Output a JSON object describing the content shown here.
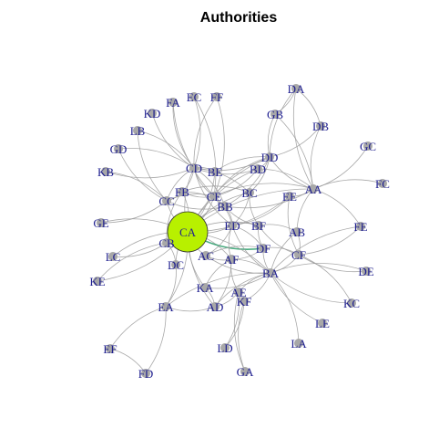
{
  "title": "Authorities",
  "colors": {
    "edge": "#9a9a9a",
    "node": "#a8a8a8",
    "label": "#1f1f8f",
    "highlight": "#b8f000",
    "accent": "#2a9d6a"
  },
  "nodes": [
    {
      "id": "DA",
      "label": "DA",
      "weight": 1
    },
    {
      "id": "FA",
      "label": "FA",
      "weight": 1
    },
    {
      "id": "EC",
      "label": "EC",
      "weight": 1
    },
    {
      "id": "FF",
      "label": "FF",
      "weight": 1
    },
    {
      "id": "KD",
      "label": "KD",
      "weight": 1
    },
    {
      "id": "GB",
      "label": "GB",
      "weight": 1
    },
    {
      "id": "DB",
      "label": "DB",
      "weight": 1
    },
    {
      "id": "LB",
      "label": "LB",
      "weight": 1
    },
    {
      "id": "GC",
      "label": "GC",
      "weight": 1
    },
    {
      "id": "GD",
      "label": "GD",
      "weight": 1
    },
    {
      "id": "DD",
      "label": "DD",
      "weight": 1
    },
    {
      "id": "CD",
      "label": "CD",
      "weight": 1
    },
    {
      "id": "BE",
      "label": "BE",
      "weight": 1
    },
    {
      "id": "BD",
      "label": "BD",
      "weight": 1
    },
    {
      "id": "KB",
      "label": "KB",
      "weight": 1
    },
    {
      "id": "AA",
      "label": "AA",
      "weight": 1
    },
    {
      "id": "FC",
      "label": "FC",
      "weight": 1
    },
    {
      "id": "FB",
      "label": "FB",
      "weight": 1
    },
    {
      "id": "CE",
      "label": "CE",
      "weight": 1
    },
    {
      "id": "BC",
      "label": "BC",
      "weight": 1
    },
    {
      "id": "EE",
      "label": "EE",
      "weight": 1
    },
    {
      "id": "CC",
      "label": "CC",
      "weight": 1
    },
    {
      "id": "BB",
      "label": "BB",
      "weight": 1
    },
    {
      "id": "GE",
      "label": "GE",
      "weight": 1
    },
    {
      "id": "CA",
      "label": "CA",
      "weight": 10
    },
    {
      "id": "ED",
      "label": "ED",
      "weight": 1
    },
    {
      "id": "BF",
      "label": "BF",
      "weight": 1
    },
    {
      "id": "FE",
      "label": "FE",
      "weight": 1
    },
    {
      "id": "AB",
      "label": "AB",
      "weight": 1
    },
    {
      "id": "LC",
      "label": "LC",
      "weight": 1
    },
    {
      "id": "CB",
      "label": "CB",
      "weight": 1
    },
    {
      "id": "DF",
      "label": "DF",
      "weight": 1
    },
    {
      "id": "AC",
      "label": "AC",
      "weight": 1
    },
    {
      "id": "AF",
      "label": "AF",
      "weight": 1
    },
    {
      "id": "CF",
      "label": "CF",
      "weight": 1
    },
    {
      "id": "DC",
      "label": "DC",
      "weight": 1
    },
    {
      "id": "KE",
      "label": "KE",
      "weight": 1
    },
    {
      "id": "BA",
      "label": "BA",
      "weight": 1
    },
    {
      "id": "DE",
      "label": "DE",
      "weight": 1
    },
    {
      "id": "KA",
      "label": "KA",
      "weight": 1
    },
    {
      "id": "AE",
      "label": "AE",
      "weight": 1
    },
    {
      "id": "KF",
      "label": "KF",
      "weight": 1
    },
    {
      "id": "KC",
      "label": "KC",
      "weight": 1
    },
    {
      "id": "EA",
      "label": "EA",
      "weight": 1
    },
    {
      "id": "AD",
      "label": "AD",
      "weight": 1
    },
    {
      "id": "LE",
      "label": "LE",
      "weight": 1
    },
    {
      "id": "LA",
      "label": "LA",
      "weight": 1
    },
    {
      "id": "LD",
      "label": "LD",
      "weight": 1
    },
    {
      "id": "EF",
      "label": "EF",
      "weight": 1
    },
    {
      "id": "FD",
      "label": "FD",
      "weight": 1
    },
    {
      "id": "GA",
      "label": "GA",
      "weight": 1
    }
  ],
  "edges": [
    [
      "DA",
      "DD"
    ],
    [
      "DA",
      "DB"
    ],
    [
      "DA",
      "AA"
    ],
    [
      "DA",
      "GB"
    ],
    [
      "DB",
      "AA"
    ],
    [
      "DB",
      "DD"
    ],
    [
      "GB",
      "DD"
    ],
    [
      "GB",
      "AA"
    ],
    [
      "FA",
      "CD"
    ],
    [
      "EC",
      "CD"
    ],
    [
      "FF",
      "CD"
    ],
    [
      "EC",
      "CE"
    ],
    [
      "FA",
      "CE"
    ],
    [
      "FF",
      "CE"
    ],
    [
      "KD",
      "CD"
    ],
    [
      "LB",
      "CD"
    ],
    [
      "GD",
      "CC"
    ],
    [
      "KB",
      "CC"
    ],
    [
      "LB",
      "CC"
    ],
    [
      "GC",
      "AA"
    ],
    [
      "FC",
      "AA"
    ],
    [
      "AA",
      "DD"
    ],
    [
      "AA",
      "BD"
    ],
    [
      "AA",
      "EE"
    ],
    [
      "AA",
      "CE"
    ],
    [
      "AA",
      "BB"
    ],
    [
      "AA",
      "CA"
    ],
    [
      "AA",
      "FE"
    ],
    [
      "AA",
      "AB"
    ],
    [
      "DD",
      "CD"
    ],
    [
      "DD",
      "BE"
    ],
    [
      "DD",
      "BD"
    ],
    [
      "DD",
      "CA"
    ],
    [
      "DD",
      "BC"
    ],
    [
      "DD",
      "CE"
    ],
    [
      "DD",
      "BB"
    ],
    [
      "CD",
      "CA"
    ],
    [
      "CD",
      "BE"
    ],
    [
      "CD",
      "CE"
    ],
    [
      "CD",
      "BB"
    ],
    [
      "CD",
      "BD"
    ],
    [
      "CD",
      "BC"
    ],
    [
      "CD",
      "ED"
    ],
    [
      "BE",
      "CA"
    ],
    [
      "BD",
      "CA"
    ],
    [
      "BD",
      "CE"
    ],
    [
      "BC",
      "CA"
    ],
    [
      "BC",
      "ED"
    ],
    [
      "BC",
      "BF"
    ],
    [
      "FB",
      "CA"
    ],
    [
      "FB",
      "CE"
    ],
    [
      "FB",
      "BB"
    ],
    [
      "FB",
      "CD"
    ],
    [
      "FB",
      "BC"
    ],
    [
      "CC",
      "CA"
    ],
    [
      "CC",
      "CD"
    ],
    [
      "CC",
      "FB"
    ],
    [
      "CC",
      "CE"
    ],
    [
      "CC",
      "BB"
    ],
    [
      "CE",
      "CA"
    ],
    [
      "CE",
      "BB"
    ],
    [
      "CE",
      "ED"
    ],
    [
      "BB",
      "CA"
    ],
    [
      "BB",
      "ED"
    ],
    [
      "BB",
      "BF"
    ],
    [
      "EE",
      "CA"
    ],
    [
      "EE",
      "CF"
    ],
    [
      "EE",
      "ED"
    ],
    [
      "FB",
      "CB"
    ],
    [
      "GE",
      "CA"
    ],
    [
      "LC",
      "CB"
    ],
    [
      "KE",
      "CB"
    ],
    [
      "CB",
      "CA"
    ],
    [
      "CB",
      "DC"
    ],
    [
      "CA",
      "ED"
    ],
    [
      "CA",
      "BF"
    ],
    [
      "CA",
      "AC"
    ],
    [
      "CA",
      "AF"
    ],
    [
      "CA",
      "DF"
    ],
    [
      "CA",
      "BA"
    ],
    [
      "CA",
      "KA"
    ],
    [
      "CA",
      "EA"
    ],
    [
      "CA",
      "AD"
    ],
    [
      "ED",
      "BF"
    ],
    [
      "ED",
      "AF"
    ],
    [
      "ED",
      "DF"
    ],
    [
      "ED",
      "BA"
    ],
    [
      "ED",
      "AC"
    ],
    [
      "BF",
      "DF"
    ],
    [
      "BF",
      "AB"
    ],
    [
      "BF",
      "CF"
    ],
    [
      "AB",
      "CF"
    ],
    [
      "AB",
      "BA"
    ],
    [
      "FE",
      "CF"
    ],
    [
      "FE",
      "BA"
    ],
    [
      "DF",
      "CF"
    ],
    [
      "DF",
      "BA"
    ],
    [
      "DF",
      "AF"
    ],
    [
      "AC",
      "AF"
    ],
    [
      "AC",
      "DF"
    ],
    [
      "AC",
      "BA"
    ],
    [
      "AF",
      "BA"
    ],
    [
      "AF",
      "KA"
    ],
    [
      "AF",
      "AD"
    ],
    [
      "AF",
      "AE"
    ],
    [
      "CF",
      "BA"
    ],
    [
      "CF",
      "DE"
    ],
    [
      "CF",
      "KC"
    ],
    [
      "DE",
      "BA"
    ],
    [
      "KC",
      "BA"
    ],
    [
      "BA",
      "AE"
    ],
    [
      "BA",
      "KF"
    ],
    [
      "BA",
      "LE"
    ],
    [
      "BA",
      "LA"
    ],
    [
      "BA",
      "AD"
    ],
    [
      "BA",
      "KA"
    ],
    [
      "BA",
      "EA"
    ],
    [
      "KA",
      "AD"
    ],
    [
      "AE",
      "KF"
    ],
    [
      "AE",
      "AD"
    ],
    [
      "KF",
      "GA"
    ],
    [
      "KF",
      "LD"
    ],
    [
      "AE",
      "GA"
    ],
    [
      "AE",
      "LD"
    ],
    [
      "EA",
      "EF"
    ],
    [
      "EA",
      "FD"
    ],
    [
      "EA",
      "AD"
    ],
    [
      "EF",
      "FD"
    ],
    [
      "EA",
      "DC"
    ],
    [
      "DC",
      "CA"
    ],
    [
      "KE",
      "CA"
    ],
    [
      "LC",
      "CA"
    ],
    [
      "GE",
      "CC"
    ],
    [
      "GD",
      "CD"
    ],
    [
      "KB",
      "CD"
    ]
  ],
  "highlight_node": "CA",
  "accent_edges": [
    [
      "CA",
      "DF"
    ]
  ]
}
